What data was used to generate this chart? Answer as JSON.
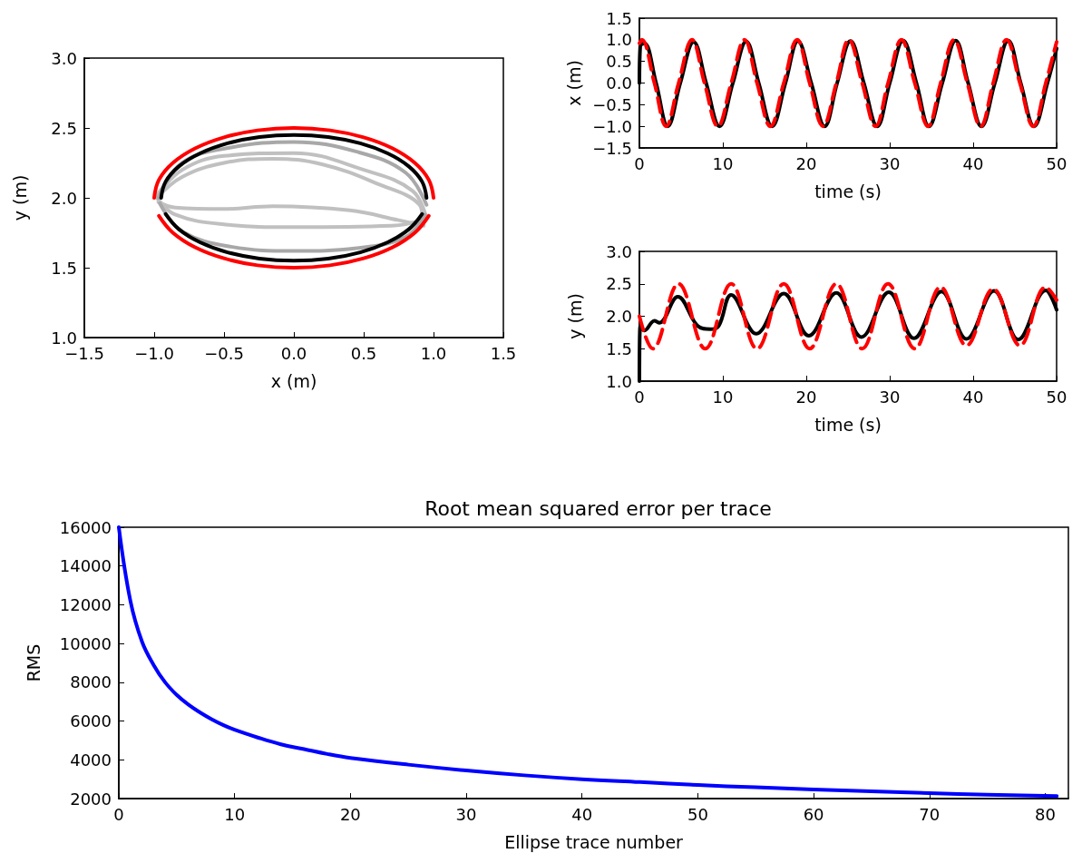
{
  "chart_data": [
    {
      "type": "line",
      "xlabel": "x (m)",
      "ylabel": "y (m)",
      "xlim": [
        -1.5,
        1.5
      ],
      "ylim": [
        1.0,
        3.0
      ],
      "xticks": [
        {
          "value": -1.5,
          "label": "−1.5"
        },
        {
          "value": -1.0,
          "label": "−1.0"
        },
        {
          "value": -0.5,
          "label": "−0.5"
        },
        {
          "value": 0,
          "label": "0.0"
        },
        {
          "value": 0.5,
          "label": "0.5"
        },
        {
          "value": 1.0,
          "label": "1.0"
        },
        {
          "value": 1.5,
          "label": "1.5"
        }
      ],
      "yticks": [
        {
          "value": 1.0,
          "label": "1.0"
        },
        {
          "value": 1.5,
          "label": "1.5"
        },
        {
          "value": 2.0,
          "label": "2.0"
        },
        {
          "value": 2.5,
          "label": "2.5"
        },
        {
          "value": 3.0,
          "label": "3.0"
        }
      ],
      "series": [
        {
          "color": "#c0c0c0",
          "x": [
            -0.98,
            -0.8,
            -0.5,
            -0.15,
            0.2,
            0.6,
            0.9,
            0.92
          ],
          "values": [
            2.0,
            2.15,
            2.25,
            2.28,
            2.24,
            2.1,
            1.95,
            1.85
          ]
        },
        {
          "color": "#c0c0c0",
          "x": [
            -0.97,
            -0.85,
            -0.5,
            -0.15,
            0.4,
            0.75,
            0.93
          ],
          "values": [
            1.97,
            1.93,
            1.92,
            1.94,
            1.91,
            1.84,
            1.8
          ]
        },
        {
          "color": "#c0c0c0",
          "x": [
            -0.98,
            -0.8,
            -0.5,
            0.0,
            0.5,
            0.85,
            0.95
          ],
          "values": [
            2.02,
            2.2,
            2.3,
            2.32,
            2.2,
            2.05,
            1.85
          ]
        },
        {
          "color": "#c0c0c0",
          "x": [
            -0.98,
            -0.85,
            -0.5,
            0.0,
            0.7,
            0.95
          ],
          "values": [
            2.0,
            1.88,
            1.81,
            1.79,
            1.8,
            1.85
          ]
        },
        {
          "color": "#a8a8a8",
          "x": [
            -0.97,
            -0.8,
            -0.45,
            0.0,
            0.45,
            0.8,
            0.95
          ],
          "values": [
            2.0,
            2.25,
            2.36,
            2.4,
            2.33,
            2.18,
            1.95
          ]
        },
        {
          "color": "#a8a8a8",
          "x": [
            -0.96,
            -0.8,
            -0.45,
            0.0,
            0.45,
            0.8,
            0.94
          ],
          "values": [
            1.96,
            1.76,
            1.65,
            1.62,
            1.64,
            1.72,
            1.88
          ]
        },
        {
          "color": "#000000",
          "x": [
            -0.95,
            -0.918,
            -0.823,
            -0.672,
            -0.475,
            -0.246,
            0,
            0.246,
            0.475,
            0.672,
            0.823,
            0.918,
            0.95
          ],
          "values": [
            2.0,
            2.116,
            2.225,
            2.318,
            2.39,
            2.435,
            2.45,
            2.435,
            2.39,
            2.318,
            2.225,
            2.116,
            2.0
          ]
        },
        {
          "color": "#000000",
          "x": [
            -0.918,
            -0.823,
            -0.672,
            -0.475,
            -0.246,
            0,
            0.246,
            0.475,
            0.672,
            0.823,
            0.918
          ],
          "values": [
            1.884,
            1.775,
            1.682,
            1.61,
            1.565,
            1.55,
            1.565,
            1.61,
            1.682,
            1.775,
            1.884
          ]
        },
        {
          "color": "#ff0000",
          "x": [
            -1,
            -0.966,
            -0.866,
            -0.707,
            -0.5,
            -0.259,
            0,
            0.259,
            0.5,
            0.707,
            0.866,
            0.966,
            1
          ],
          "values": [
            2.0,
            2.129,
            2.25,
            2.354,
            2.433,
            2.483,
            2.5,
            2.483,
            2.433,
            2.354,
            2.25,
            2.129,
            2.0
          ]
        },
        {
          "color": "#ff0000",
          "x": [
            -0.966,
            -0.866,
            -0.707,
            -0.5,
            -0.259,
            0,
            0.259,
            0.5,
            0.707,
            0.866,
            0.966
          ],
          "values": [
            1.871,
            1.75,
            1.646,
            1.567,
            1.517,
            1.5,
            1.517,
            1.567,
            1.646,
            1.75,
            1.871
          ]
        }
      ]
    },
    {
      "type": "line",
      "xlabel": "time (s)",
      "ylabel": "x (m)",
      "xlim": [
        0,
        50
      ],
      "ylim": [
        -1.5,
        1.5
      ],
      "xticks": [
        0,
        10,
        20,
        30,
        40,
        50
      ],
      "yticks": [
        {
          "value": -1.5,
          "label": "−1.5"
        },
        {
          "value": -1.0,
          "label": "−1.0"
        },
        {
          "value": -0.5,
          "label": "−0.5"
        },
        {
          "value": 0,
          "label": "0.0"
        },
        {
          "value": 0.5,
          "label": "0.5"
        },
        {
          "value": 1.0,
          "label": "1.0"
        },
        {
          "value": 1.5,
          "label": "1.5"
        }
      ],
      "series": [
        {
          "color": "#000000",
          "line_style": "solid",
          "x": [
            0,
            0.1,
            0.6,
            2.0,
            3.4,
            4.9,
            6.5,
            8.0,
            9.6,
            11.2,
            12.8,
            14.3,
            15.9,
            17.5,
            19.0,
            20.6,
            22.2,
            23.7,
            25.3,
            26.9,
            28.5,
            30.0,
            31.6,
            33.2,
            34.7,
            36.3,
            37.9,
            39.4,
            41.0,
            42.6,
            44.2,
            45.7,
            47.3,
            48.9,
            50
          ],
          "values": [
            0,
            0.85,
            0.92,
            0,
            -1.0,
            0,
            0.95,
            0,
            -1.0,
            0,
            0.96,
            0,
            -1.0,
            0,
            0.97,
            0,
            -1.0,
            0,
            0.97,
            0,
            -1.0,
            0,
            0.98,
            0,
            -1.0,
            0,
            0.98,
            0,
            -1.0,
            0,
            0.98,
            0,
            -1.0,
            0,
            0.8
          ]
        },
        {
          "color": "#ff0000",
          "line_style": "dashed",
          "x": [
            0,
            0.3,
            1.8,
            3.2,
            4.7,
            6.3,
            7.8,
            9.4,
            11.0,
            12.6,
            14.1,
            15.7,
            17.3,
            18.9,
            20.4,
            22.0,
            23.6,
            25.1,
            26.7,
            28.3,
            29.8,
            31.4,
            33.0,
            34.6,
            36.1,
            37.7,
            39.3,
            40.9,
            42.4,
            44.0,
            45.6,
            47.2,
            48.7,
            50
          ],
          "values": [
            0.92,
            1.0,
            0,
            -1.0,
            0,
            1.0,
            0,
            -1.0,
            0,
            1.0,
            0,
            -1.0,
            0,
            1.0,
            0,
            -1.0,
            0,
            1.0,
            0,
            -1.0,
            0,
            1.0,
            0,
            -1.0,
            0,
            1.0,
            0,
            -1.0,
            0,
            1.0,
            0,
            -1.0,
            0,
            0.95
          ]
        }
      ]
    },
    {
      "type": "line",
      "xlabel": "time (s)",
      "ylabel": "y (m)",
      "xlim": [
        0,
        50
      ],
      "ylim": [
        1.0,
        3.0
      ],
      "xticks": [
        0,
        10,
        20,
        30,
        40,
        50
      ],
      "yticks": [
        {
          "value": 1.0,
          "label": "1.0"
        },
        {
          "value": 1.5,
          "label": "1.5"
        },
        {
          "value": 2.0,
          "label": "2.0"
        },
        {
          "value": 2.5,
          "label": "2.5"
        },
        {
          "value": 3.0,
          "label": "3.0"
        }
      ],
      "series": [
        {
          "color": "#000000",
          "line_style": "solid",
          "x": [
            0,
            0.1,
            0.6,
            1.8,
            2.4,
            4.6,
            7.0,
            8.5,
            9.5,
            11.0,
            14.0,
            17.3,
            20.3,
            23.6,
            26.6,
            29.9,
            32.9,
            36.2,
            39.2,
            42.5,
            45.4,
            48.7,
            50
          ],
          "values": [
            1.0,
            1.85,
            1.78,
            1.93,
            1.9,
            2.3,
            1.85,
            1.8,
            1.85,
            2.33,
            1.73,
            2.35,
            1.7,
            2.36,
            1.68,
            2.37,
            1.66,
            2.38,
            1.65,
            2.39,
            1.64,
            2.4,
            2.1
          ]
        },
        {
          "color": "#ff0000",
          "line_style": "dashed",
          "x": [
            0,
            1.6,
            4.7,
            7.9,
            11.0,
            14.1,
            17.3,
            20.4,
            23.6,
            26.7,
            29.8,
            33.0,
            36.1,
            39.2,
            42.4,
            45.6,
            48.7,
            50
          ],
          "values": [
            2.0,
            1.5,
            2.5,
            1.5,
            2.5,
            1.5,
            2.5,
            1.5,
            2.5,
            1.5,
            2.5,
            1.5,
            2.45,
            1.55,
            2.42,
            1.55,
            2.45,
            2.25
          ]
        }
      ]
    },
    {
      "type": "line",
      "title": "Root mean squared error per trace",
      "xlabel": "Ellipse trace number",
      "ylabel": "RMS",
      "xlim": [
        0,
        82
      ],
      "ylim": [
        2000,
        16000
      ],
      "xticks": [
        0,
        10,
        20,
        30,
        40,
        50,
        60,
        70,
        80
      ],
      "yticks": [
        2000,
        4000,
        6000,
        8000,
        10000,
        12000,
        14000,
        16000
      ],
      "series": [
        {
          "color": "#0000ff",
          "x": [
            0,
            1,
            2,
            3,
            4,
            5,
            6,
            7,
            8,
            9,
            10,
            12,
            14,
            16,
            18,
            20,
            25,
            30,
            35,
            40,
            45,
            50,
            55,
            60,
            65,
            70,
            75,
            81
          ],
          "values": [
            16000,
            12200,
            10100,
            8900,
            8000,
            7350,
            6850,
            6450,
            6100,
            5800,
            5550,
            5150,
            4800,
            4550,
            4300,
            4100,
            3750,
            3450,
            3200,
            3000,
            2850,
            2700,
            2580,
            2470,
            2370,
            2280,
            2200,
            2130
          ]
        }
      ]
    }
  ]
}
